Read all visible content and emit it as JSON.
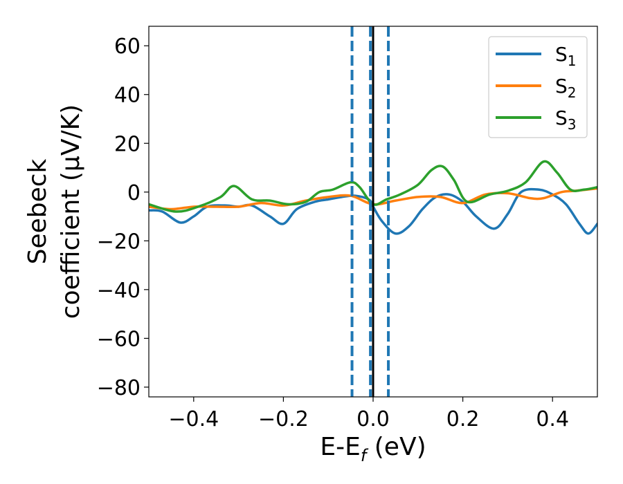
{
  "chart_data": {
    "type": "line",
    "xlabel_main": "E-E",
    "xlabel_sub": "f",
    "xlabel_tail": " (eV)",
    "ylabel_line1": "Seebeck",
    "ylabel_line2": "coefficient  (μV/K)",
    "xlim": [
      -0.5,
      0.5
    ],
    "ylim": [
      -84,
      68
    ],
    "xticks": [
      -0.4,
      -0.2,
      0.0,
      0.2,
      0.4
    ],
    "xtick_labels": [
      "−0.4",
      "−0.2",
      "0.0",
      "0.2",
      "0.4"
    ],
    "yticks": [
      -80,
      -60,
      -40,
      -20,
      0,
      20,
      40,
      60
    ],
    "ytick_labels": [
      "−80",
      "−60",
      "−40",
      "−20",
      "0",
      "20",
      "40",
      "60"
    ],
    "legend_position": "top-right",
    "vlines": [
      {
        "x": 0.0,
        "style": "solid",
        "color": "#000000"
      },
      {
        "x": -0.047,
        "style": "dashed",
        "color": "#1f77b4"
      },
      {
        "x": -0.006,
        "style": "dashed",
        "color": "#1f77b4"
      },
      {
        "x": 0.034,
        "style": "dashed",
        "color": "#1f77b4"
      }
    ],
    "series": [
      {
        "name": "S",
        "name_sub": "1",
        "color": "#1f77b4",
        "x": [
          -0.5,
          -0.47,
          -0.43,
          -0.4,
          -0.37,
          -0.33,
          -0.3,
          -0.27,
          -0.23,
          -0.2,
          -0.17,
          -0.13,
          -0.1,
          -0.07,
          -0.04,
          -0.01,
          0.0,
          0.02,
          0.05,
          0.08,
          0.11,
          0.14,
          0.17,
          0.2,
          0.23,
          0.27,
          0.3,
          0.33,
          0.37,
          0.4,
          0.43,
          0.46,
          0.48,
          0.5
        ],
        "y": [
          -7.5,
          -8,
          -12.5,
          -10,
          -6,
          -5.5,
          -6,
          -5.5,
          -10,
          -13,
          -7,
          -4,
          -3,
          -2,
          -1.5,
          -3,
          -6,
          -12,
          -17,
          -14,
          -7,
          -2,
          -1,
          -4,
          -10,
          -15,
          -9,
          0,
          1,
          -1,
          -5,
          -13,
          -17,
          -13
        ]
      },
      {
        "name": "S",
        "name_sub": "2",
        "color": "#ff7f0e",
        "x": [
          -0.5,
          -0.45,
          -0.4,
          -0.35,
          -0.3,
          -0.25,
          -0.2,
          -0.15,
          -0.1,
          -0.05,
          0.0,
          0.05,
          0.1,
          0.15,
          0.2,
          0.25,
          0.3,
          0.35,
          0.38,
          0.42,
          0.45,
          0.5
        ],
        "y": [
          -6,
          -7,
          -6,
          -6,
          -6,
          -4.5,
          -5.5,
          -3.5,
          -2,
          -1.5,
          -5,
          -3.5,
          -2,
          -2,
          -4.5,
          -1,
          -0.5,
          -2.5,
          -2.5,
          0,
          0.5,
          1.5
        ]
      },
      {
        "name": "S",
        "name_sub": "3",
        "color": "#2ca02c",
        "x": [
          -0.5,
          -0.44,
          -0.39,
          -0.34,
          -0.31,
          -0.27,
          -0.23,
          -0.19,
          -0.15,
          -0.12,
          -0.09,
          -0.05,
          -0.03,
          0.0,
          0.03,
          0.06,
          0.1,
          0.13,
          0.155,
          0.18,
          0.21,
          0.26,
          0.3,
          0.34,
          0.38,
          0.41,
          0.44,
          0.47,
          0.5
        ],
        "y": [
          -5,
          -8,
          -6,
          -2,
          2.5,
          -3,
          -3.5,
          -5,
          -4,
          0,
          1,
          4,
          2,
          -5,
          -3,
          -1,
          3,
          9,
          10.5,
          5,
          -4,
          -1,
          0.5,
          4,
          12.5,
          8,
          1,
          1,
          2
        ]
      }
    ]
  }
}
